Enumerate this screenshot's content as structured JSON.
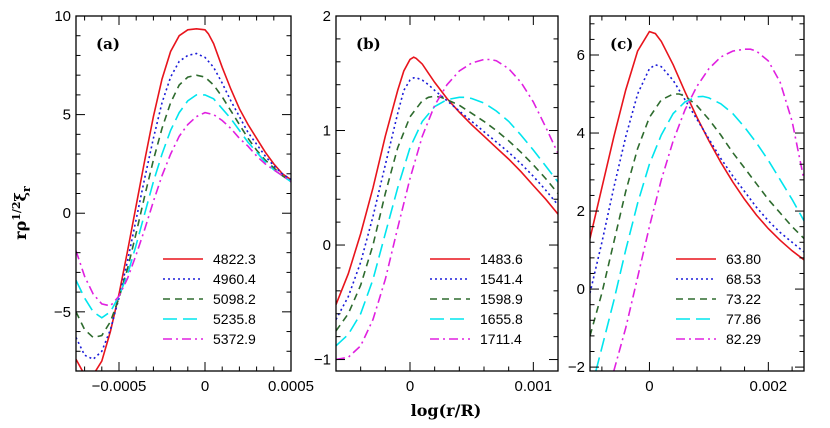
{
  "chart_data": [
    {
      "type": "line",
      "panel_label": "(a)",
      "xlim": [
        -0.00075,
        0.0005
      ],
      "ylim": [
        -8,
        10
      ],
      "xticks": [
        -0.0005,
        0,
        0.0005
      ],
      "xtick_labels": [
        "−0.0005",
        "0",
        "0.0005"
      ],
      "yticks": [
        -5,
        0,
        5,
        10
      ],
      "ytick_labels": [
        "−5",
        "0",
        "5",
        "10"
      ],
      "ylabel": "rρ",
      "ylabel_sup": "1/2",
      "ylabel_xi": "ξ",
      "ylabel_sub": "r",
      "legend_position": "bottom-right",
      "series": [
        {
          "name": "4822.3",
          "color": "#e8141c",
          "dash": "solid",
          "x": [
            -0.00075,
            -0.0007,
            -0.00065,
            -0.0006,
            -0.00055,
            -0.0005,
            -0.00045,
            -0.0004,
            -0.00035,
            -0.0003,
            -0.00025,
            -0.0002,
            -0.00015,
            -0.0001,
            -5e-05,
            0,
            2e-05,
            5e-05,
            0.0001,
            0.00015,
            0.0002,
            0.00025,
            0.0003,
            0.00035,
            0.0004,
            0.00045,
            0.0005
          ],
          "y": [
            -7.4,
            -8.2,
            -8.2,
            -7.5,
            -6.0,
            -4.1,
            -1.9,
            0.4,
            2.7,
            4.9,
            6.8,
            8.2,
            9.0,
            9.3,
            9.35,
            9.3,
            9.1,
            8.6,
            7.4,
            6.3,
            5.3,
            4.5,
            3.8,
            3.1,
            2.5,
            2.0,
            1.7
          ]
        },
        {
          "name": "4960.4",
          "color": "#1b1bd8",
          "dash": "dot",
          "x": [
            -0.00075,
            -0.0007,
            -0.00065,
            -0.0006,
            -0.00055,
            -0.0005,
            -0.00045,
            -0.0004,
            -0.00035,
            -0.0003,
            -0.00025,
            -0.0002,
            -0.00015,
            -0.0001,
            -5e-05,
            0,
            5e-05,
            0.0001,
            0.00015,
            0.0002,
            0.00025,
            0.0003,
            0.00035,
            0.0004,
            0.00045,
            0.0005
          ],
          "y": [
            -6.3,
            -7.2,
            -7.4,
            -7.0,
            -5.9,
            -4.3,
            -2.4,
            -0.3,
            1.8,
            3.8,
            5.6,
            6.9,
            7.7,
            8.0,
            8.1,
            7.9,
            7.4,
            6.6,
            5.7,
            4.9,
            4.1,
            3.5,
            2.9,
            2.4,
            2.0,
            1.7
          ]
        },
        {
          "name": "5098.2",
          "color": "#2e6b2e",
          "dash": "dash",
          "x": [
            -0.00075,
            -0.0007,
            -0.00065,
            -0.0006,
            -0.00055,
            -0.0005,
            -0.00045,
            -0.0004,
            -0.00035,
            -0.0003,
            -0.00025,
            -0.0002,
            -0.00015,
            -0.0001,
            -5e-05,
            0,
            5e-05,
            0.0001,
            0.00015,
            0.0002,
            0.00025,
            0.0003,
            0.00035,
            0.0004,
            0.00045,
            0.0005
          ],
          "y": [
            -5.0,
            -5.9,
            -6.3,
            -6.2,
            -5.5,
            -4.3,
            -2.8,
            -1.0,
            0.9,
            2.7,
            4.3,
            5.6,
            6.5,
            6.9,
            7.0,
            6.9,
            6.5,
            5.9,
            5.2,
            4.5,
            3.8,
            3.2,
            2.7,
            2.3,
            1.9,
            1.6
          ]
        },
        {
          "name": "5235.8",
          "color": "#00e5ee",
          "dash": "longdash",
          "x": [
            -0.00075,
            -0.0007,
            -0.00065,
            -0.0006,
            -0.00055,
            -0.0005,
            -0.00045,
            -0.0004,
            -0.00035,
            -0.0003,
            -0.00025,
            -0.0002,
            -0.00015,
            -0.0001,
            -5e-05,
            0,
            5e-05,
            0.0001,
            0.00015,
            0.0002,
            0.00025,
            0.0003,
            0.00035,
            0.0004,
            0.00045,
            0.0005
          ],
          "y": [
            -3.4,
            -4.3,
            -5.0,
            -5.3,
            -5.0,
            -4.2,
            -3.1,
            -1.6,
            0.0,
            1.6,
            3.0,
            4.2,
            5.1,
            5.7,
            6.0,
            6.0,
            5.8,
            5.3,
            4.8,
            4.2,
            3.6,
            3.1,
            2.6,
            2.2,
            1.9,
            1.6
          ]
        },
        {
          "name": "5372.9",
          "color": "#e020e0",
          "dash": "dashdot",
          "x": [
            -0.00075,
            -0.0007,
            -0.00065,
            -0.0006,
            -0.00055,
            -0.0005,
            -0.00045,
            -0.0004,
            -0.00035,
            -0.0003,
            -0.00025,
            -0.0002,
            -0.00015,
            -0.0001,
            -5e-05,
            0,
            5e-05,
            0.0001,
            0.00015,
            0.0002,
            0.00025,
            0.0003,
            0.00035,
            0.0004,
            0.00045,
            0.0005
          ],
          "y": [
            -1.9,
            -3.2,
            -4.1,
            -4.6,
            -4.7,
            -4.2,
            -3.3,
            -2.1,
            -0.8,
            0.6,
            1.9,
            3.0,
            3.9,
            4.5,
            4.9,
            5.1,
            5.0,
            4.7,
            4.3,
            3.8,
            3.4,
            2.9,
            2.5,
            2.2,
            1.9,
            1.6
          ]
        }
      ]
    },
    {
      "type": "line",
      "panel_label": "(b)",
      "xlim": [
        -0.0006,
        0.0012
      ],
      "ylim": [
        -1.1,
        2
      ],
      "xticks": [
        0,
        0.001
      ],
      "xtick_labels": [
        "0",
        "0.001"
      ],
      "yticks": [
        -1,
        0,
        1,
        2
      ],
      "ytick_labels": [
        "−1",
        "0",
        "1",
        "2"
      ],
      "xlabel": "log(r/R)",
      "legend_position": "bottom-right",
      "series": [
        {
          "name": "1483.6",
          "color": "#e8141c",
          "dash": "solid",
          "x": [
            -0.0006,
            -0.0005,
            -0.0004,
            -0.0003,
            -0.0002,
            -0.0001,
            -5e-05,
            0,
            3e-05,
            5e-05,
            0.0001,
            0.00015,
            0.0002,
            0.0003,
            0.0004,
            0.0005,
            0.0006,
            0.0007,
            0.0008,
            0.0009,
            0.001,
            0.0011,
            0.0012
          ],
          "y": [
            -0.52,
            -0.25,
            0.1,
            0.5,
            0.95,
            1.35,
            1.52,
            1.62,
            1.64,
            1.63,
            1.58,
            1.5,
            1.42,
            1.28,
            1.16,
            1.05,
            0.95,
            0.85,
            0.75,
            0.64,
            0.52,
            0.4,
            0.27
          ]
        },
        {
          "name": "1541.4",
          "color": "#1b1bd8",
          "dash": "dot",
          "x": [
            -0.0006,
            -0.0005,
            -0.0004,
            -0.0003,
            -0.0002,
            -0.0001,
            -5e-05,
            0,
            3e-05,
            5e-05,
            0.0001,
            0.00015,
            0.0002,
            0.0003,
            0.0004,
            0.0005,
            0.0006,
            0.0007,
            0.0008,
            0.0009,
            0.001,
            0.0011,
            0.0012
          ],
          "y": [
            -0.65,
            -0.45,
            -0.15,
            0.25,
            0.7,
            1.15,
            1.35,
            1.44,
            1.46,
            1.46,
            1.44,
            1.4,
            1.35,
            1.26,
            1.17,
            1.08,
            0.99,
            0.9,
            0.81,
            0.71,
            0.6,
            0.48,
            0.35
          ]
        },
        {
          "name": "1598.9",
          "color": "#2e6b2e",
          "dash": "dash",
          "x": [
            -0.0006,
            -0.0005,
            -0.0004,
            -0.0003,
            -0.0002,
            -0.0001,
            0,
            0.0001,
            0.00015,
            0.0002,
            0.00025,
            0.0003,
            0.0004,
            0.0005,
            0.0006,
            0.0007,
            0.0008,
            0.0009,
            0.001,
            0.0011,
            0.0012
          ],
          "y": [
            -0.75,
            -0.6,
            -0.35,
            0.0,
            0.45,
            0.85,
            1.12,
            1.26,
            1.29,
            1.3,
            1.29,
            1.27,
            1.22,
            1.15,
            1.08,
            1.0,
            0.91,
            0.81,
            0.7,
            0.58,
            0.45
          ]
        },
        {
          "name": "1655.8",
          "color": "#00e5ee",
          "dash": "longdash",
          "x": [
            -0.0006,
            -0.0005,
            -0.0004,
            -0.0003,
            -0.0002,
            -0.0001,
            0,
            0.0001,
            0.0002,
            0.0003,
            0.0004,
            0.00045,
            0.0005,
            0.0006,
            0.0007,
            0.0008,
            0.0009,
            0.001,
            0.0011,
            0.0012
          ],
          "y": [
            -0.88,
            -0.78,
            -0.6,
            -0.3,
            0.1,
            0.5,
            0.85,
            1.08,
            1.21,
            1.27,
            1.29,
            1.29,
            1.28,
            1.24,
            1.17,
            1.08,
            0.96,
            0.83,
            0.69,
            0.55
          ]
        },
        {
          "name": "1711.4",
          "color": "#e020e0",
          "dash": "dashdot",
          "x": [
            -0.0006,
            -0.0005,
            -0.0004,
            -0.0003,
            -0.0002,
            -0.0001,
            0,
            0.0001,
            0.0002,
            0.0003,
            0.0004,
            0.0005,
            0.0006,
            0.00065,
            0.0007,
            0.0008,
            0.0009,
            0.001,
            0.0011,
            0.0012
          ],
          "y": [
            -1.0,
            -0.98,
            -0.88,
            -0.65,
            -0.3,
            0.15,
            0.58,
            0.95,
            1.22,
            1.4,
            1.52,
            1.59,
            1.62,
            1.62,
            1.61,
            1.54,
            1.42,
            1.25,
            1.03,
            0.8
          ]
        }
      ]
    },
    {
      "type": "line",
      "panel_label": "(c)",
      "xlim": [
        -0.001,
        0.0026
      ],
      "ylim": [
        -2.1,
        7
      ],
      "xticks": [
        0,
        0.002
      ],
      "xtick_labels": [
        "0",
        "0.002"
      ],
      "yticks": [
        -2,
        0,
        2,
        4,
        6
      ],
      "ytick_labels": [
        "−2",
        "0",
        "2",
        "4",
        "6"
      ],
      "legend_position": "bottom-right",
      "series": [
        {
          "name": "63.80",
          "color": "#e8141c",
          "dash": "solid",
          "x": [
            -0.001,
            -0.0008,
            -0.0006,
            -0.0004,
            -0.0002,
            0,
            0.0001,
            0.0002,
            0.0004,
            0.0006,
            0.0008,
            0.001,
            0.0012,
            0.0014,
            0.0016,
            0.0018,
            0.002,
            0.0022,
            0.0024,
            0.0026
          ],
          "y": [
            1.3,
            2.6,
            3.9,
            5.1,
            6.1,
            6.6,
            6.55,
            6.35,
            5.75,
            5.05,
            4.4,
            3.8,
            3.25,
            2.75,
            2.3,
            1.9,
            1.55,
            1.25,
            0.98,
            0.75
          ]
        },
        {
          "name": "68.53",
          "color": "#1b1bd8",
          "dash": "dot",
          "x": [
            -0.001,
            -0.0008,
            -0.0006,
            -0.0004,
            -0.0002,
            0,
            0.0001,
            0.0002,
            0.0004,
            0.0006,
            0.0008,
            0.001,
            0.0012,
            0.0014,
            0.0016,
            0.0018,
            0.002,
            0.0022,
            0.0024,
            0.0026
          ],
          "y": [
            -0.1,
            1.2,
            2.6,
            3.9,
            5.0,
            5.65,
            5.75,
            5.7,
            5.35,
            4.85,
            4.35,
            3.85,
            3.35,
            2.9,
            2.5,
            2.1,
            1.75,
            1.45,
            1.2,
            0.95
          ]
        },
        {
          "name": "73.22",
          "color": "#2e6b2e",
          "dash": "dash",
          "x": [
            -0.001,
            -0.0008,
            -0.0006,
            -0.0004,
            -0.0002,
            0,
            0.0002,
            0.0004,
            0.0005,
            0.0006,
            0.0008,
            0.001,
            0.0012,
            0.0014,
            0.0016,
            0.0018,
            0.002,
            0.0022,
            0.0024,
            0.0026
          ],
          "y": [
            -1.2,
            -0.1,
            1.2,
            2.5,
            3.6,
            4.4,
            4.85,
            5.0,
            5.0,
            4.95,
            4.7,
            4.35,
            3.95,
            3.5,
            3.1,
            2.7,
            2.3,
            1.95,
            1.6,
            1.3
          ]
        },
        {
          "name": "77.86",
          "color": "#00e5ee",
          "dash": "longdash",
          "x": [
            -0.0009,
            -0.0008,
            -0.0006,
            -0.0004,
            -0.0002,
            0,
            0.0002,
            0.0004,
            0.0006,
            0.0008,
            0.0009,
            0.001,
            0.0012,
            0.0014,
            0.0016,
            0.0018,
            0.002,
            0.0022,
            0.0024,
            0.0026
          ],
          "y": [
            -2.1,
            -1.5,
            -0.3,
            1.0,
            2.2,
            3.2,
            3.95,
            4.5,
            4.8,
            4.93,
            4.94,
            4.9,
            4.75,
            4.5,
            4.15,
            3.75,
            3.3,
            2.8,
            2.3,
            1.75
          ]
        },
        {
          "name": "82.29",
          "color": "#e020e0",
          "dash": "dashdot",
          "x": [
            -0.0006,
            -0.0004,
            -0.0002,
            0,
            0.0002,
            0.0004,
            0.0006,
            0.0008,
            0.001,
            0.0012,
            0.0014,
            0.0016,
            0.0017,
            0.0018,
            0.002,
            0.0022,
            0.0024,
            0.0026
          ],
          "y": [
            -2.1,
            -1.0,
            0.3,
            1.6,
            2.8,
            3.8,
            4.6,
            5.2,
            5.65,
            5.95,
            6.1,
            6.15,
            6.15,
            6.1,
            5.85,
            5.3,
            4.3,
            2.8
          ]
        }
      ]
    }
  ]
}
